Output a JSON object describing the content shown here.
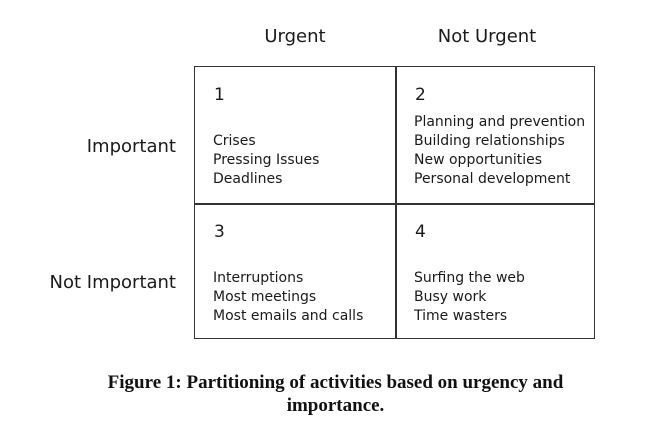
{
  "columns": {
    "urgent": "Urgent",
    "not_urgent": "Not Urgent"
  },
  "rows": {
    "important": "Important",
    "not_important": "Not Important"
  },
  "quadrants": [
    {
      "number": "1",
      "items": [
        "Crises",
        "Pressing Issues",
        "Deadlines"
      ]
    },
    {
      "number": "2",
      "items": [
        "Planning and prevention",
        "Building relationships",
        "New opportunities",
        "Personal development"
      ]
    },
    {
      "number": "3",
      "items": [
        "Interruptions",
        "Most meetings",
        "Most emails and calls"
      ]
    },
    {
      "number": "4",
      "items": [
        "Surfing the web",
        "Busy work",
        "Time wasters"
      ]
    }
  ],
  "caption": {
    "line1": "Figure 1: Partitioning of activities based on urgency and",
    "line2": "importance."
  }
}
